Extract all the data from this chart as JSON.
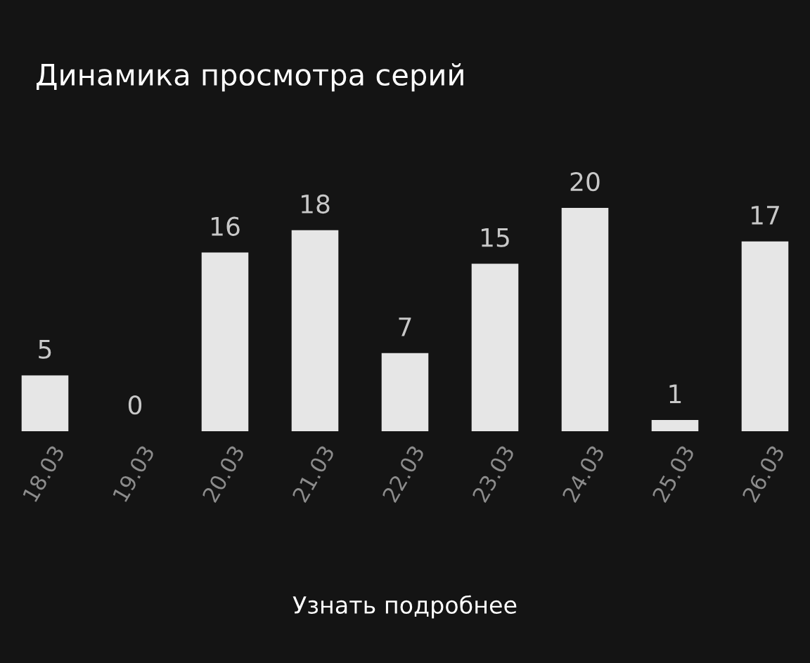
{
  "chart_data": {
    "type": "bar",
    "title": "Динамика просмотра серий",
    "categories": [
      "18.03",
      "19.03",
      "20.03",
      "21.03",
      "22.03",
      "23.03",
      "24.03",
      "25.03",
      "26.03"
    ],
    "values": [
      5,
      0,
      16,
      18,
      7,
      15,
      20,
      1,
      17
    ],
    "color": "#e6e6e6",
    "data_labels": true,
    "grid": false,
    "legend": false,
    "annotations": [
      "Узнать подробнее"
    ]
  }
}
